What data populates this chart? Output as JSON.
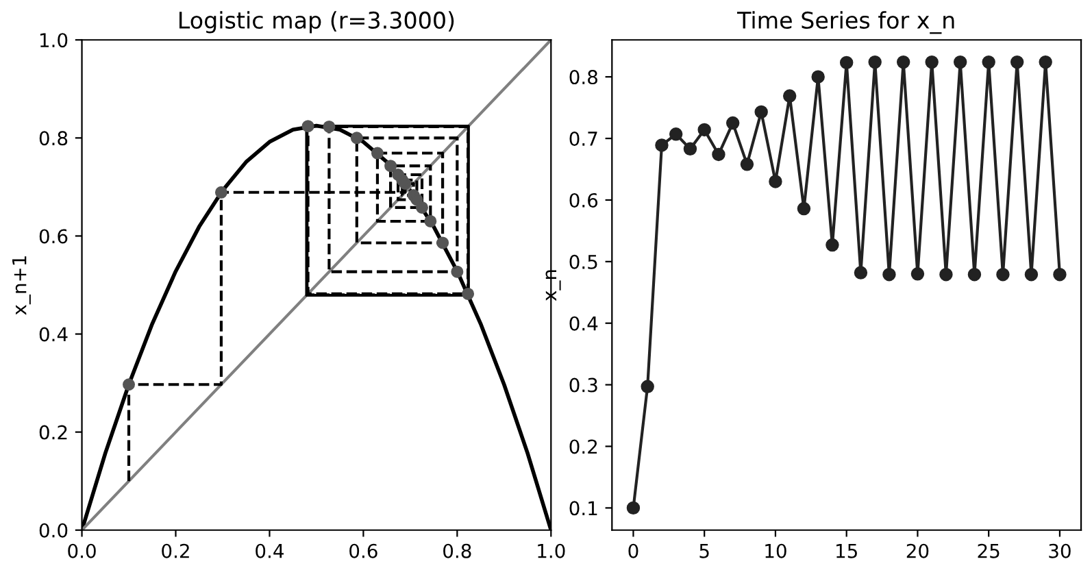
{
  "chart_data": [
    {
      "type": "line",
      "title": "Logistic map (r=3.3000)",
      "ylabel": "x_n+1",
      "xlim": [
        0,
        1
      ],
      "ylim": [
        0,
        1
      ],
      "xticks": [
        {
          "value": 0,
          "label": "0.0"
        },
        0.2,
        0.4,
        0.6,
        0.8,
        {
          "value": 1,
          "label": "1.0"
        }
      ],
      "yticks": [
        {
          "value": 0,
          "label": "0.0"
        },
        0.2,
        0.4,
        0.6,
        0.8,
        {
          "value": 1,
          "label": "1.0"
        }
      ],
      "series": [
        {
          "type": "line",
          "color": "#000000",
          "line_style": "solid",
          "marker": "none",
          "x": [
            0,
            0.05,
            0.1,
            0.15,
            0.2,
            0.25,
            0.3,
            0.35,
            0.4,
            0.45,
            0.5,
            0.55,
            0.6,
            0.65,
            0.7,
            0.75,
            0.8,
            0.85,
            0.9,
            0.95,
            1.0
          ],
          "values": [
            0,
            0.157,
            0.297,
            0.421,
            0.528,
            0.619,
            0.693,
            0.751,
            0.792,
            0.817,
            0.825,
            0.817,
            0.792,
            0.751,
            0.693,
            0.619,
            0.528,
            0.421,
            0.297,
            0.157,
            0
          ]
        },
        {
          "type": "line",
          "color": "#808080",
          "line_style": "solid",
          "marker": "none",
          "x": [
            0,
            1
          ],
          "values": [
            0,
            1
          ]
        },
        {
          "type": "line",
          "color": "#000000",
          "line_style": "dashed",
          "marker": "none",
          "x": [
            0.1,
            0.1,
            0.297,
            0.297,
            0.689,
            0.689,
            0.707,
            0.707,
            0.683,
            0.683,
            0.714,
            0.714,
            0.674,
            0.674,
            0.725,
            0.725,
            0.658,
            0.658,
            0.743,
            0.743,
            0.63,
            0.63,
            0.769,
            0.769,
            0.586,
            0.586,
            0.8,
            0.8,
            0.527,
            0.527,
            0.823,
            0.823,
            0.482,
            0.482,
            0.824,
            0.824,
            0.479,
            0.479,
            0.824,
            0.824,
            0.48,
            0.48,
            0.824,
            0.824,
            0.479,
            0.479,
            0.824,
            0.824,
            0.479,
            0.479,
            0.824,
            0.824,
            0.479,
            0.479,
            0.824,
            0.824,
            0.479,
            0.479,
            0.824,
            0.824
          ],
          "values": [
            0.1,
            0.297,
            0.297,
            0.689,
            0.689,
            0.707,
            0.707,
            0.683,
            0.683,
            0.714,
            0.714,
            0.674,
            0.674,
            0.725,
            0.725,
            0.658,
            0.658,
            0.743,
            0.743,
            0.63,
            0.63,
            0.769,
            0.769,
            0.586,
            0.586,
            0.8,
            0.8,
            0.527,
            0.527,
            0.823,
            0.823,
            0.482,
            0.482,
            0.824,
            0.824,
            0.479,
            0.479,
            0.824,
            0.824,
            0.48,
            0.48,
            0.824,
            0.824,
            0.479,
            0.479,
            0.824,
            0.824,
            0.479,
            0.479,
            0.824,
            0.824,
            0.479,
            0.479,
            0.824,
            0.824,
            0.479,
            0.479,
            0.824,
            0.824,
            0.479
          ]
        },
        {
          "type": "scatter",
          "color": "#555555",
          "marker": "circle",
          "x": [
            0.1,
            0.297,
            0.689,
            0.707,
            0.683,
            0.714,
            0.674,
            0.725,
            0.658,
            0.743,
            0.63,
            0.769,
            0.586,
            0.8,
            0.527,
            0.823,
            0.482
          ],
          "values": [
            0.297,
            0.689,
            0.707,
            0.683,
            0.714,
            0.674,
            0.725,
            0.658,
            0.743,
            0.63,
            0.769,
            0.586,
            0.8,
            0.527,
            0.823,
            0.482,
            0.824
          ]
        }
      ]
    },
    {
      "type": "line",
      "title": "Time Series for x_n",
      "ylabel": "x_n",
      "xlim": [
        -1.5,
        31.5
      ],
      "ylim": [
        0.064,
        0.86
      ],
      "xticks": [
        0,
        5,
        10,
        15,
        20,
        25,
        30
      ],
      "yticks": [
        0.1,
        0.2,
        0.3,
        0.4,
        0.5,
        0.6,
        0.7,
        0.8
      ],
      "series": [
        {
          "type": "line",
          "color": "#222222",
          "line_style": "solid",
          "marker": "circle",
          "x": [
            0,
            1,
            2,
            3,
            4,
            5,
            6,
            7,
            8,
            9,
            10,
            11,
            12,
            13,
            14,
            15,
            16,
            17,
            18,
            19,
            20,
            21,
            22,
            23,
            24,
            25,
            26,
            27,
            28,
            29,
            30
          ],
          "values": [
            0.1,
            0.297,
            0.689,
            0.707,
            0.683,
            0.714,
            0.674,
            0.725,
            0.658,
            0.743,
            0.63,
            0.769,
            0.586,
            0.8,
            0.527,
            0.823,
            0.482,
            0.824,
            0.479,
            0.824,
            0.48,
            0.824,
            0.479,
            0.824,
            0.479,
            0.824,
            0.479,
            0.824,
            0.479,
            0.824,
            0.479
          ]
        }
      ]
    }
  ]
}
